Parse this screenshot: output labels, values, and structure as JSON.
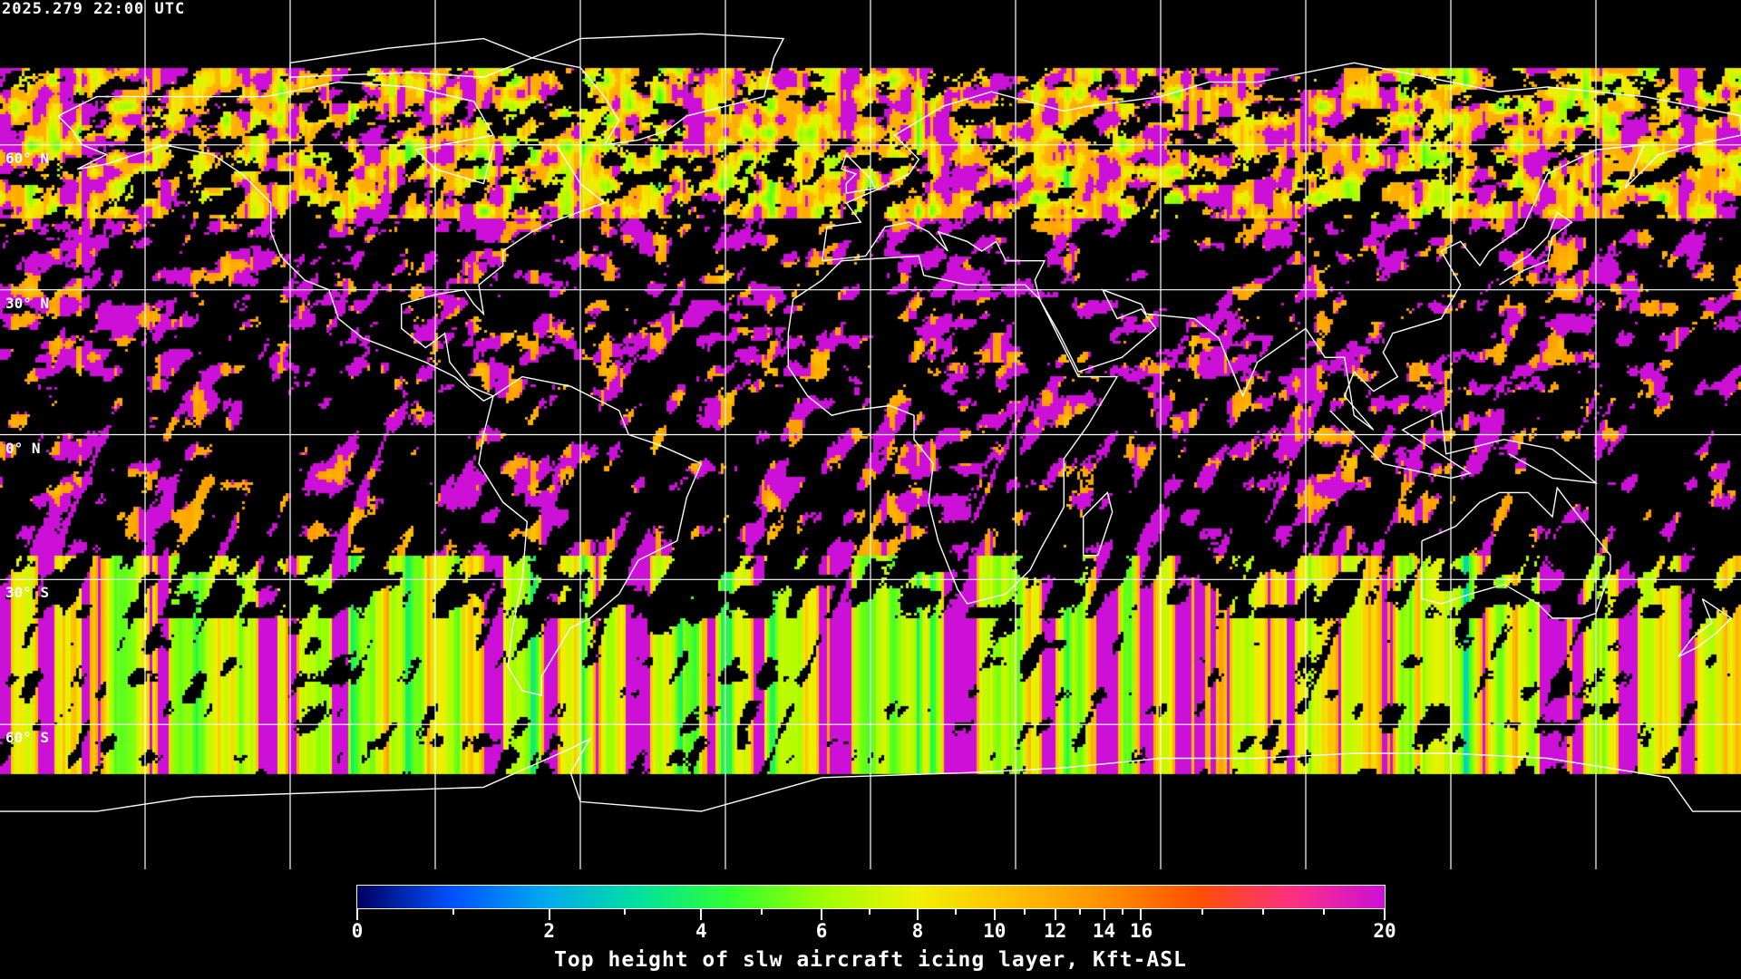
{
  "header": {
    "timestamp": "2025.279 22:00 UTC"
  },
  "map": {
    "projection": "equirectangular",
    "lon_range": [
      -180,
      180
    ],
    "lat_range": [
      -90,
      90
    ],
    "grid_spacing_deg": 30,
    "grid_color": "#ffffff",
    "coastline_color": "#ffffff",
    "background": "#000000",
    "lat_labels": [
      {
        "lat": 60,
        "text": "60° N"
      },
      {
        "lat": 30,
        "text": "30° N"
      },
      {
        "lat": 0,
        "text": "0° N"
      },
      {
        "lat": -30,
        "text": "30° S"
      },
      {
        "lat": -60,
        "text": "60° S"
      }
    ]
  },
  "colorbar": {
    "title": "Top height of slw aircraft icing layer, Kft-ASL",
    "range": [
      0,
      20
    ],
    "tick_labels": [
      "0",
      "2",
      "4",
      "6",
      "8",
      "10",
      "12",
      "14",
      "16",
      "20"
    ],
    "minor_ticks": [
      1,
      3,
      5,
      7,
      9,
      11,
      13,
      15,
      17,
      18,
      19
    ],
    "colors": [
      "#000060",
      "#0050ff",
      "#00a8f0",
      "#00e0a0",
      "#30ff30",
      "#a0ff00",
      "#f0f000",
      "#ffc000",
      "#ff9000",
      "#ff5000",
      "#ff3080",
      "#cc10d8"
    ]
  }
}
